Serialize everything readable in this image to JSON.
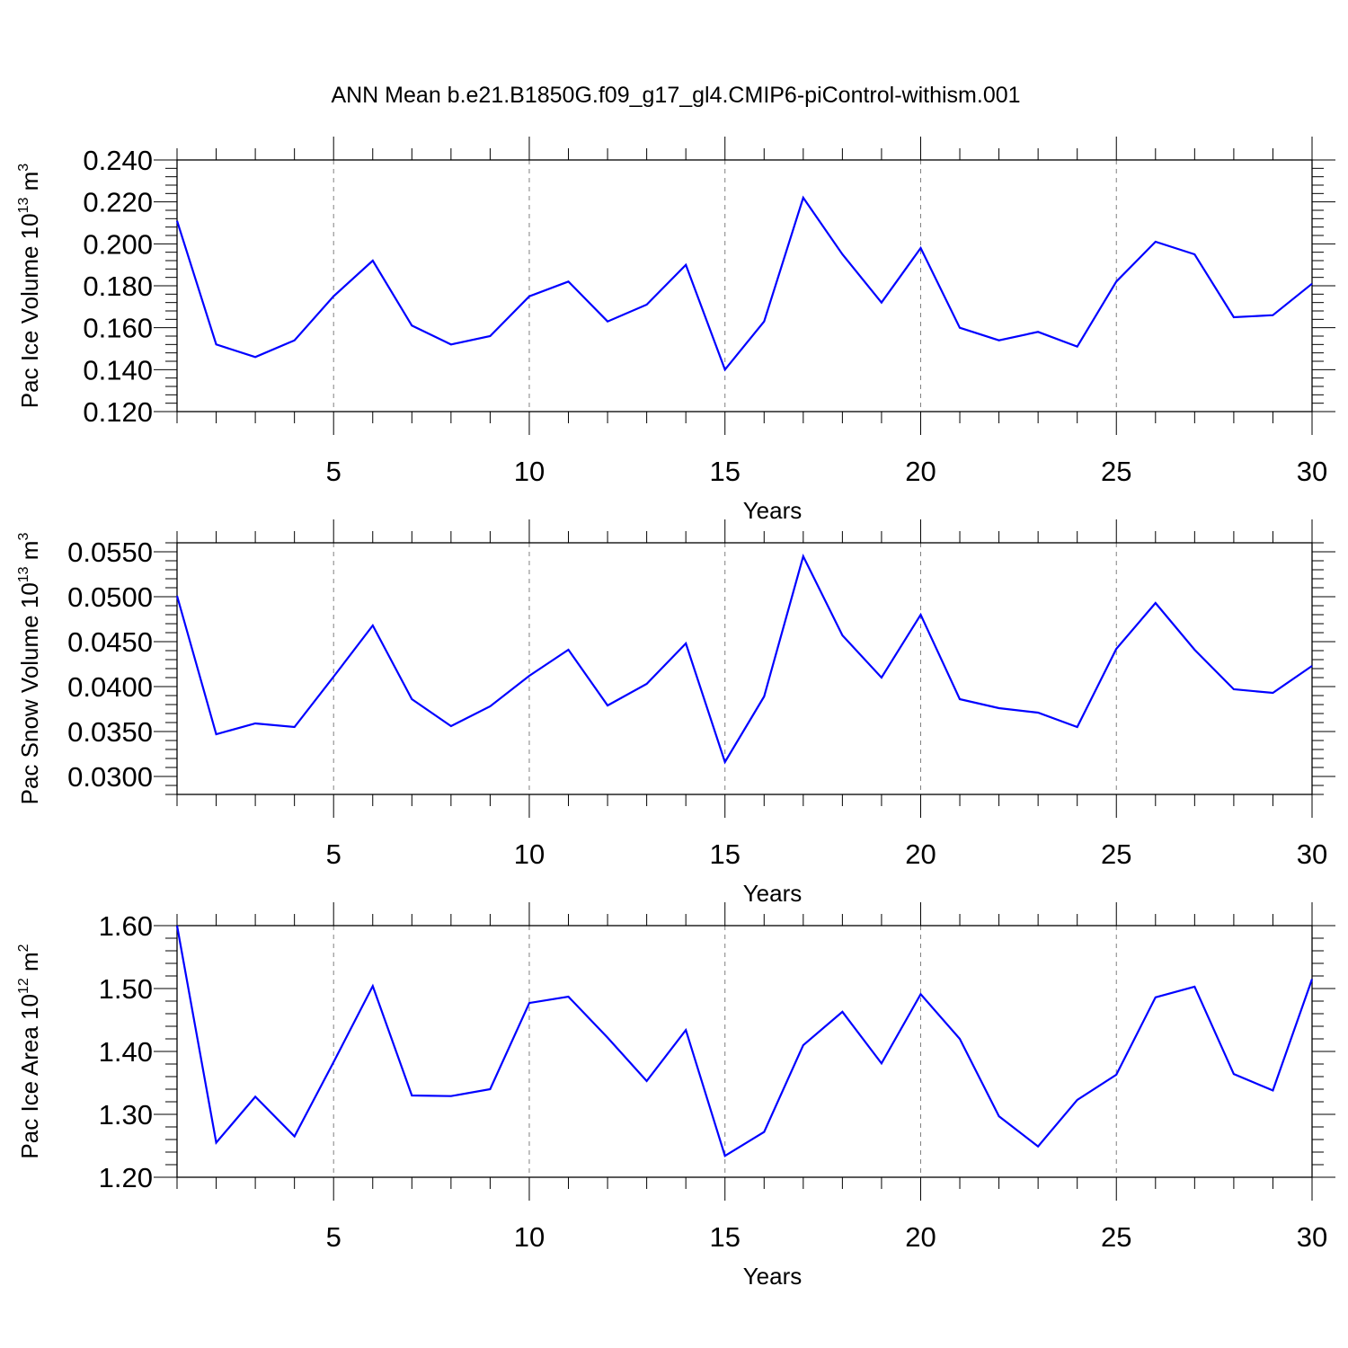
{
  "title": "ANN Mean b.e21.B1850G.f09_g17_gl4.CMIP6-piControl-withism.001",
  "colors": {
    "series": "#0000ff",
    "axis": "#000000",
    "grid": "#808080"
  },
  "chart_data": [
    {
      "type": "line",
      "ylabel": "Pac Ice Volume 10",
      "ylabel_exp": "13",
      "ylabel_unit": " m",
      "ylabel_unit_exp": "3",
      "xlabel": "Years",
      "xlim": [
        1,
        30
      ],
      "ylim": [
        0.12,
        0.24
      ],
      "yticks": [
        0.12,
        0.14,
        0.16,
        0.18,
        0.2,
        0.22,
        0.24
      ],
      "ytick_labels": [
        "0.120",
        "0.140",
        "0.160",
        "0.180",
        "0.200",
        "0.220",
        "0.240"
      ],
      "xticks": [
        5,
        10,
        15,
        20,
        25,
        30
      ],
      "xtick_labels": [
        "5",
        "10",
        "15",
        "20",
        "25",
        "30"
      ],
      "grid": "vertical dashed at major x ticks",
      "x": [
        1,
        2,
        3,
        4,
        5,
        6,
        7,
        8,
        9,
        10,
        11,
        12,
        13,
        14,
        15,
        16,
        17,
        18,
        19,
        20,
        21,
        22,
        23,
        24,
        25,
        26,
        27,
        28,
        29,
        30
      ],
      "values": [
        0.211,
        0.152,
        0.146,
        0.154,
        0.175,
        0.192,
        0.161,
        0.152,
        0.156,
        0.175,
        0.182,
        0.163,
        0.171,
        0.19,
        0.14,
        0.163,
        0.222,
        0.195,
        0.172,
        0.198,
        0.16,
        0.154,
        0.158,
        0.151,
        0.182,
        0.201,
        0.195,
        0.165,
        0.166,
        0.181
      ]
    },
    {
      "type": "line",
      "ylabel": "Pac Snow Volume 10",
      "ylabel_exp": "13",
      "ylabel_unit": " m",
      "ylabel_unit_exp": "3",
      "xlabel": "Years",
      "xlim": [
        1,
        30
      ],
      "ylim": [
        0.028,
        0.056
      ],
      "yticks": [
        0.03,
        0.035,
        0.04,
        0.045,
        0.05,
        0.055
      ],
      "ytick_labels": [
        "0.0300",
        "0.0350",
        "0.0400",
        "0.0450",
        "0.0500",
        "0.0550"
      ],
      "xticks": [
        5,
        10,
        15,
        20,
        25,
        30
      ],
      "xtick_labels": [
        "5",
        "10",
        "15",
        "20",
        "25",
        "30"
      ],
      "grid": "vertical dashed at major x ticks",
      "x": [
        1,
        2,
        3,
        4,
        5,
        6,
        7,
        8,
        9,
        10,
        11,
        12,
        13,
        14,
        15,
        16,
        17,
        18,
        19,
        20,
        21,
        22,
        23,
        24,
        25,
        26,
        27,
        28,
        29,
        30
      ],
      "values": [
        0.0501,
        0.0347,
        0.0359,
        0.0355,
        0.0411,
        0.0468,
        0.0386,
        0.0356,
        0.0378,
        0.0412,
        0.0441,
        0.0379,
        0.0403,
        0.0448,
        0.0316,
        0.0389,
        0.0545,
        0.0457,
        0.041,
        0.048,
        0.0386,
        0.0376,
        0.0371,
        0.0355,
        0.0442,
        0.0493,
        0.0441,
        0.0397,
        0.0393,
        0.0423
      ]
    },
    {
      "type": "line",
      "ylabel": "Pac Ice Area 10",
      "ylabel_exp": "12",
      "ylabel_unit": " m",
      "ylabel_unit_exp": "2",
      "xlabel": "Years",
      "xlim": [
        1,
        30
      ],
      "ylim": [
        1.2,
        1.6
      ],
      "yticks": [
        1.2,
        1.3,
        1.4,
        1.5,
        1.6
      ],
      "ytick_labels": [
        "1.20",
        "1.30",
        "1.40",
        "1.50",
        "1.60"
      ],
      "xticks": [
        5,
        10,
        15,
        20,
        25,
        30
      ],
      "xtick_labels": [
        "5",
        "10",
        "15",
        "20",
        "25",
        "30"
      ],
      "grid": "vertical dashed at major x ticks",
      "x": [
        1,
        2,
        3,
        4,
        5,
        6,
        7,
        8,
        9,
        10,
        11,
        12,
        13,
        14,
        15,
        16,
        17,
        18,
        19,
        20,
        21,
        22,
        23,
        24,
        25,
        26,
        27,
        28,
        29,
        30
      ],
      "values": [
        1.6,
        1.255,
        1.328,
        1.265,
        1.383,
        1.504,
        1.33,
        1.329,
        1.34,
        1.477,
        1.487,
        1.422,
        1.353,
        1.434,
        1.234,
        1.272,
        1.41,
        1.463,
        1.381,
        1.491,
        1.42,
        1.297,
        1.249,
        1.323,
        1.363,
        1.486,
        1.503,
        1.364,
        1.338,
        1.515
      ]
    }
  ]
}
